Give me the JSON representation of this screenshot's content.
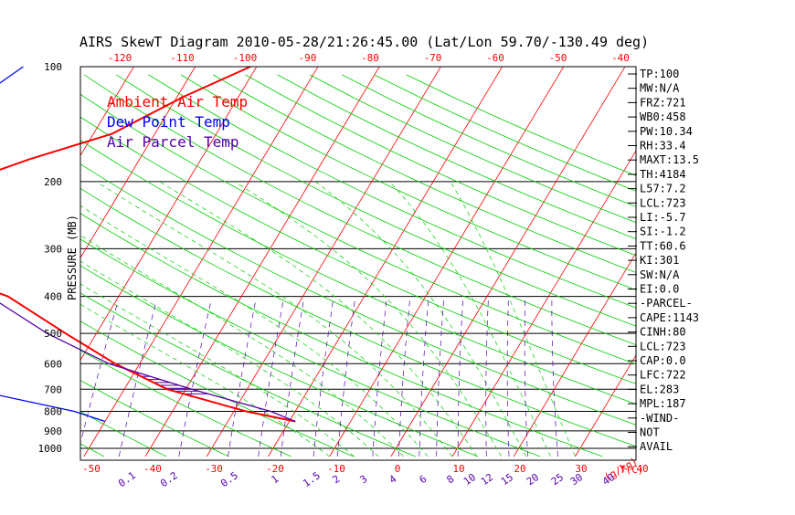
{
  "chart_data": {
    "type": "line",
    "title": "AIRS SkewT Diagram 2010-05-28/21:26:45.00 (Lat/Lon 59.70/-130.49 deg)",
    "ylabel": "PRESSURE (MB)",
    "xlabel": "T(C)",
    "mixing_ratio_label": "(g/kg)",
    "y_scale": "log",
    "ylim": [
      1000,
      100
    ],
    "xlim": [
      -50,
      40
    ],
    "top_ticks": [
      "-120",
      "-110",
      "-100",
      "-90",
      "-80",
      "-70",
      "-60",
      "-50",
      "-40"
    ],
    "bottom_ticks": [
      "-50",
      "-40",
      "-30",
      "-20",
      "-10",
      "0",
      "10",
      "20",
      "30",
      "40"
    ],
    "pressure_ticks": [
      "100",
      "200",
      "300",
      "400",
      "500",
      "600",
      "700",
      "800",
      "900",
      "1000"
    ],
    "mixing_ratio_ticks": [
      "0.1",
      "0.2",
      "0.5",
      "1",
      "1.5",
      "2",
      "3",
      "4",
      "6",
      "8",
      "10",
      "12",
      "15",
      "20",
      "25",
      "30",
      "40"
    ],
    "legend": [
      {
        "name": "Ambient Air Temp",
        "color": "#ff0000"
      },
      {
        "name": "Dew Point Temp",
        "color": "#0000ff"
      },
      {
        "name": "Air Parcel Temp",
        "color": "#5500aa"
      }
    ],
    "grid": true,
    "series": [
      {
        "name": "Ambient Air Temp",
        "color": "#ff0000",
        "points": [
          [
            100,
            -51
          ],
          [
            120,
            -59
          ],
          [
            150,
            -67
          ],
          [
            175,
            -78
          ],
          [
            200,
            -86
          ],
          [
            235,
            -92
          ],
          [
            260,
            -92
          ],
          [
            300,
            -91
          ],
          [
            350,
            -80
          ],
          [
            400,
            -68
          ],
          [
            500,
            -55
          ],
          [
            600,
            -44
          ],
          [
            700,
            -33
          ],
          [
            800,
            -18
          ],
          [
            850,
            -9
          ]
        ]
      },
      {
        "name": "Dew Point Temp",
        "color": "#0000ff",
        "points": [
          [
            100,
            -88
          ],
          [
            150,
            -97
          ],
          [
            200,
            -96
          ],
          [
            250,
            -93
          ],
          [
            300,
            -98
          ],
          [
            400,
            -107
          ],
          [
            500,
            -101
          ],
          [
            600,
            -84
          ],
          [
            700,
            -65
          ],
          [
            800,
            -46
          ],
          [
            850,
            -40
          ]
        ]
      },
      {
        "name": "Air Parcel Temp",
        "color": "#5500aa",
        "points": [
          [
            100,
            -104
          ],
          [
            150,
            -105
          ],
          [
            200,
            -103
          ],
          [
            250,
            -100
          ],
          [
            300,
            -93
          ],
          [
            350,
            -82
          ],
          [
            400,
            -71
          ],
          [
            500,
            -58
          ],
          [
            600,
            -45
          ],
          [
            700,
            -29
          ],
          [
            800,
            -14
          ],
          [
            850,
            -9
          ]
        ]
      }
    ],
    "indices": [
      "TP:100",
      "MW:N/A",
      "FRZ:721",
      "WB0:458",
      "PW:10.34",
      "RH:33.4",
      "MAXT:13.5",
      "TH:4184",
      "L57:7.2",
      "LCL:723",
      "LI:-5.7",
      "SI:-1.2",
      "TT:60.6",
      "KI:301",
      "SW:N/A",
      "EI:0.0",
      "-PARCEL-",
      "CAPE:1143",
      "CINH:80",
      "LCL:723",
      "CAP:0.0",
      "LFC:722",
      "EL:283",
      "MPL:187",
      "-WIND-",
      "NOT",
      "AVAIL"
    ],
    "colors": {
      "isotherm": "#ff0000",
      "dry_adiabat": "#00cc00",
      "moist_adiabat": "#00cc00",
      "mixing_ratio": "#5500aa",
      "isobar": "#000000",
      "axis_labels": "#ff0000",
      "hatch": "#5500aa"
    }
  }
}
